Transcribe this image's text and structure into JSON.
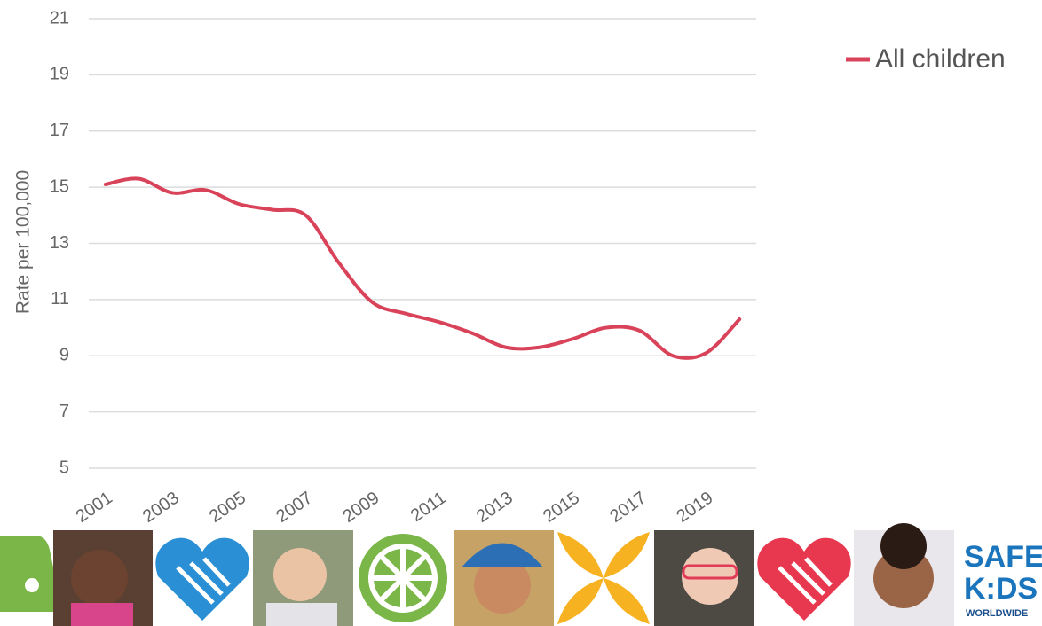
{
  "chart_data": {
    "type": "line",
    "y_label": "Rate per 100,000",
    "categories": [
      "2001",
      null,
      "2003",
      null,
      "2005",
      null,
      "2007",
      null,
      "2009",
      null,
      "2011",
      null,
      "2013",
      null,
      "2015",
      null,
      "2017",
      null,
      "2019",
      null
    ],
    "series": [
      {
        "name": "All children",
        "color": "#d9435a",
        "values": [
          15.1,
          15.3,
          14.8,
          14.9,
          14.4,
          14.2,
          14.0,
          12.3,
          10.9,
          10.5,
          10.2,
          9.8,
          9.3,
          9.3,
          9.6,
          10.0,
          9.9,
          9.0,
          9.1,
          10.3
        ]
      }
    ],
    "ylim": [
      5,
      21
    ],
    "yticks": [
      5,
      7,
      9,
      11,
      13,
      15,
      17,
      19,
      21
    ],
    "grid": true,
    "legend": "right"
  },
  "banner": {
    "logo": {
      "line1": "SAFE",
      "line2": "K:DS",
      "line3": "WORLDWIDE"
    }
  }
}
